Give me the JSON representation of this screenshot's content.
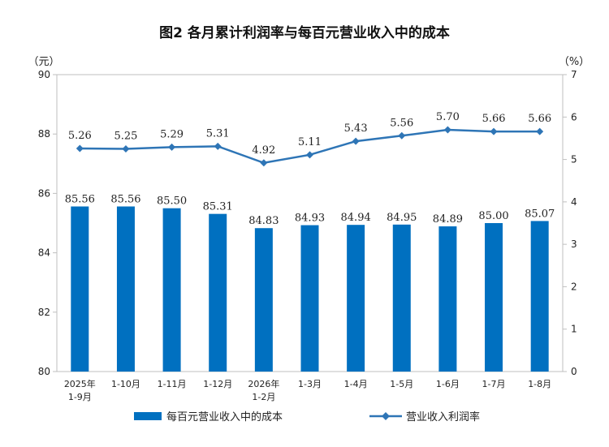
{
  "chart_data": {
    "type": "bar+line",
    "title": "图2  各月累计利润率与每百元营业收入中的成本",
    "left_unit": "（元）",
    "right_unit": "（%）",
    "categories": [
      [
        "2025年",
        "1-9月"
      ],
      [
        "1-10月"
      ],
      [
        "1-11月"
      ],
      [
        "1-12月"
      ],
      [
        "2026年",
        "1-2月"
      ],
      [
        "1-3月"
      ],
      [
        "1-4月"
      ],
      [
        "1-5月"
      ],
      [
        "1-6月"
      ],
      [
        "1-7月"
      ],
      [
        "1-8月"
      ]
    ],
    "left_axis": {
      "min": 80,
      "max": 90,
      "ticks": [
        "80",
        "82",
        "84",
        "86",
        "88",
        "90"
      ]
    },
    "right_axis": {
      "min": 0,
      "max": 7,
      "ticks": [
        "0",
        "1",
        "2",
        "3",
        "4",
        "5",
        "6",
        "7"
      ]
    },
    "series": [
      {
        "name": "每百元营业收入中的成本",
        "type": "bar",
        "axis": "left",
        "color": "#0070c0",
        "values": [
          85.56,
          85.56,
          85.5,
          85.31,
          84.83,
          84.93,
          84.94,
          84.95,
          84.89,
          85.0,
          85.07
        ],
        "labels": [
          "85.56",
          "85.56",
          "85.50",
          "85.31",
          "84.83",
          "84.93",
          "84.94",
          "84.95",
          "84.89",
          "85.00",
          "85.07"
        ]
      },
      {
        "name": "营业收入利润率",
        "type": "line",
        "axis": "right",
        "color": "#2e75b6",
        "values": [
          5.26,
          5.25,
          5.29,
          5.31,
          4.92,
          5.11,
          5.43,
          5.56,
          5.7,
          5.66,
          5.66
        ],
        "labels": [
          "5.26",
          "5.25",
          "5.29",
          "5.31",
          "4.92",
          "5.11",
          "5.43",
          "5.56",
          "5.70",
          "5.66",
          "5.66"
        ]
      }
    ],
    "legend_position": "bottom",
    "grid": false
  }
}
